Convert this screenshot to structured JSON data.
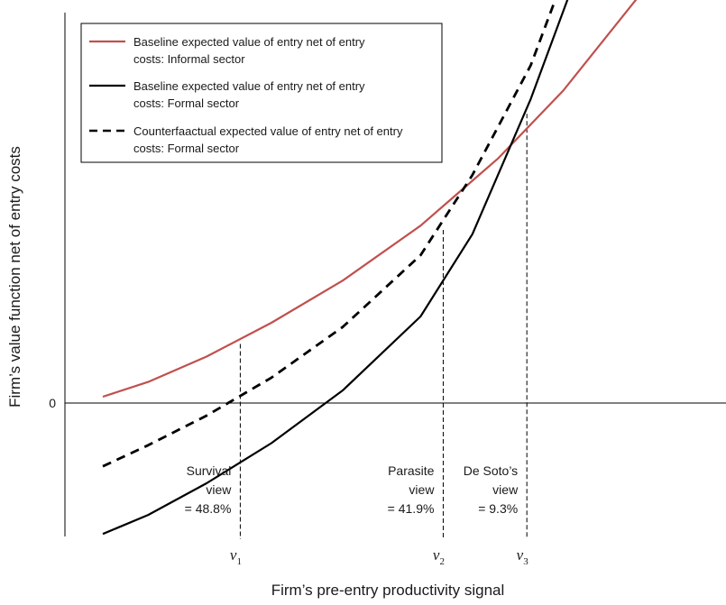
{
  "chart_data": {
    "type": "line",
    "title": "",
    "xlabel": "Firm’s pre-entry productivity signal",
    "ylabel": "Firm’s value function net of entry costs",
    "xlim": [
      0,
      100
    ],
    "ylim": [
      -1.45,
      4.0
    ],
    "y_ticks": [
      {
        "value": 0,
        "label": "0"
      }
    ],
    "x_ticks": [
      {
        "value": 26.2,
        "base": "ν",
        "sub": "1"
      },
      {
        "value": 57.5,
        "base": "ν",
        "sub": "2"
      },
      {
        "value": 70.4,
        "base": "ν",
        "sub": "3"
      }
    ],
    "grid": false,
    "legend_position": "top-left",
    "series": [
      {
        "name": "Baseline expected value of entry net of entry costs: Informal sector",
        "color": "#c0504d",
        "dash": "solid",
        "x": [
          5,
          12,
          21,
          31,
          42,
          54,
          66,
          76,
          88,
          100
        ],
        "y": [
          0.03,
          0.1,
          0.22,
          0.38,
          0.58,
          0.84,
          1.16,
          1.48,
          1.94,
          2.5
        ]
      },
      {
        "name": "Baseline expected value of entry net of entry costs: Formal sector",
        "color": "#000000",
        "dash": "solid",
        "x": [
          5,
          12,
          21,
          31,
          42,
          54,
          62,
          71,
          81,
          91,
          100
        ],
        "y": [
          -0.62,
          -0.53,
          -0.38,
          -0.19,
          0.06,
          0.41,
          0.8,
          1.44,
          2.27,
          3.2,
          3.99
        ]
      },
      {
        "name": "Counterfaactual expected value of entry net of entry costs: Formal sector",
        "color": "#000000",
        "dash": "dashed",
        "x": [
          5,
          12,
          21,
          31,
          42,
          54,
          62,
          71,
          81,
          91,
          100
        ],
        "y": [
          -0.3,
          -0.2,
          -0.06,
          0.12,
          0.36,
          0.7,
          1.08,
          1.6,
          2.42,
          3.34,
          4.01
        ]
      }
    ],
    "verticals": [
      {
        "x": 26.2,
        "y_top": 0.28
      },
      {
        "x": 57.5,
        "y_top": 0.82
      },
      {
        "x": 70.4,
        "y_top": 1.37
      }
    ],
    "annotations": [
      {
        "id": "survival",
        "lines": [
          "Survival",
          "view",
          "= 48.8%"
        ],
        "x": 26.2
      },
      {
        "id": "parasite",
        "lines": [
          "Parasite",
          "view",
          "= 41.9%"
        ],
        "x": 57.5
      },
      {
        "id": "desoto",
        "lines": [
          "De Soto’s",
          "view",
          "= 9.3%"
        ],
        "x": 70.4
      }
    ]
  }
}
